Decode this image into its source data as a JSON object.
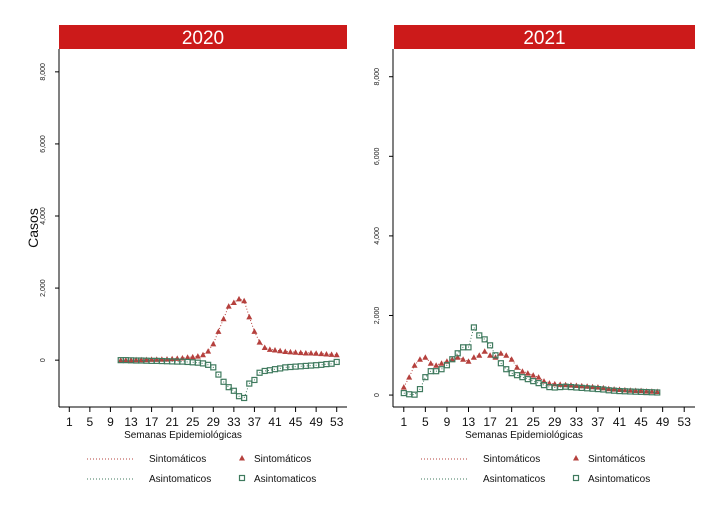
{
  "colors": {
    "header_bg": "#cc1a1a",
    "header_text": "#ffffff",
    "sintomaticos": "#b5403d",
    "asintomaticos": "#3f7a5e",
    "axis": "#000000"
  },
  "chart_data": [
    {
      "type": "scatter",
      "title": "2020",
      "xlabel": "Semanas Epidemiológicas",
      "ylabel": "Casos",
      "x_ticks": [
        1,
        5,
        9,
        13,
        17,
        21,
        25,
        29,
        33,
        37,
        41,
        45,
        49,
        53
      ],
      "y_ticks": [
        0,
        2000,
        4000,
        6000,
        8000
      ],
      "y_tick_labels": [
        "0",
        "2,000",
        "4,000",
        "6,000",
        "8,000"
      ],
      "xlim": [
        -1,
        55
      ],
      "ylim": [
        -1300,
        9300
      ],
      "series": [
        {
          "name": "Sintomáticos",
          "marker": "triangle",
          "line": "dotted",
          "x": [
            11,
            12,
            13,
            14,
            15,
            16,
            17,
            18,
            19,
            20,
            21,
            22,
            23,
            24,
            25,
            26,
            27,
            28,
            29,
            30,
            31,
            32,
            33,
            34,
            35,
            36,
            37,
            38,
            39,
            40,
            41,
            42,
            43,
            44,
            45,
            46,
            47,
            48,
            49,
            50,
            51,
            52,
            53
          ],
          "values": [
            0,
            0,
            5,
            10,
            10,
            15,
            20,
            20,
            25,
            30,
            40,
            50,
            60,
            80,
            90,
            110,
            150,
            250,
            450,
            800,
            1150,
            1500,
            1600,
            1700,
            1650,
            1200,
            800,
            500,
            350,
            300,
            280,
            260,
            240,
            230,
            220,
            210,
            200,
            200,
            190,
            180,
            170,
            160,
            150
          ]
        },
        {
          "name": "Asintomaticos",
          "marker": "square",
          "line": "dotted",
          "x": [
            11,
            12,
            13,
            14,
            15,
            16,
            17,
            18,
            19,
            20,
            21,
            22,
            23,
            24,
            25,
            26,
            27,
            28,
            29,
            30,
            31,
            32,
            33,
            34,
            35,
            36,
            37,
            38,
            39,
            40,
            41,
            42,
            43,
            44,
            45,
            46,
            47,
            48,
            49,
            50,
            51,
            52,
            53
          ],
          "values": [
            0,
            0,
            -5,
            -10,
            -10,
            -15,
            -20,
            -20,
            -25,
            -30,
            -35,
            -40,
            -40,
            -50,
            -60,
            -70,
            -90,
            -130,
            -200,
            -400,
            -600,
            -750,
            -850,
            -1000,
            -1050,
            -650,
            -550,
            -350,
            -300,
            -280,
            -250,
            -230,
            -200,
            -190,
            -180,
            -170,
            -160,
            -150,
            -140,
            -130,
            -110,
            -100,
            -50
          ]
        }
      ]
    },
    {
      "type": "scatter",
      "title": "2021",
      "xlabel": "Semanas Epidemiológicas",
      "ylabel": "",
      "x_ticks": [
        1,
        5,
        9,
        13,
        17,
        21,
        25,
        29,
        33,
        37,
        41,
        45,
        49,
        53
      ],
      "y_ticks": [
        0,
        2000,
        4000,
        6000,
        8000
      ],
      "y_tick_labels": [
        "0",
        "2,000",
        "4,000",
        "6,000",
        "8,000"
      ],
      "xlim": [
        -1,
        55
      ],
      "ylim": [
        -300,
        9300
      ],
      "series": [
        {
          "name": "Sintomáticos",
          "marker": "triangle",
          "line": "dotted",
          "x": [
            1,
            2,
            3,
            4,
            5,
            6,
            7,
            8,
            9,
            10,
            11,
            12,
            13,
            14,
            15,
            16,
            17,
            18,
            19,
            20,
            21,
            22,
            23,
            24,
            25,
            26,
            27,
            28,
            29,
            30,
            31,
            32,
            33,
            34,
            35,
            36,
            37,
            38,
            39,
            40,
            41,
            42,
            43,
            44,
            45,
            46,
            47,
            48
          ],
          "values": [
            200,
            450,
            750,
            900,
            950,
            800,
            750,
            800,
            850,
            900,
            950,
            900,
            850,
            950,
            1000,
            1100,
            1000,
            950,
            1050,
            1000,
            900,
            700,
            600,
            550,
            500,
            450,
            350,
            300,
            280,
            270,
            260,
            250,
            240,
            230,
            220,
            210,
            200,
            180,
            160,
            150,
            140,
            130,
            120,
            115,
            110,
            100,
            95,
            90
          ]
        },
        {
          "name": "Asintomaticos",
          "marker": "square",
          "line": "dotted",
          "x": [
            1,
            2,
            3,
            4,
            5,
            6,
            7,
            8,
            9,
            10,
            11,
            12,
            13,
            14,
            15,
            16,
            17,
            18,
            19,
            20,
            21,
            22,
            23,
            24,
            25,
            26,
            27,
            28,
            29,
            30,
            31,
            32,
            33,
            34,
            35,
            36,
            37,
            38,
            39,
            40,
            41,
            42,
            43,
            44,
            45,
            46,
            47,
            48
          ],
          "values": [
            50,
            20,
            10,
            150,
            450,
            600,
            600,
            650,
            750,
            900,
            1050,
            1200,
            1200,
            1700,
            1500,
            1400,
            1250,
            1000,
            800,
            650,
            550,
            500,
            450,
            400,
            350,
            300,
            250,
            200,
            190,
            200,
            210,
            200,
            190,
            180,
            170,
            160,
            150,
            140,
            120,
            110,
            100,
            95,
            90,
            85,
            80,
            75,
            70,
            65
          ]
        }
      ]
    }
  ]
}
